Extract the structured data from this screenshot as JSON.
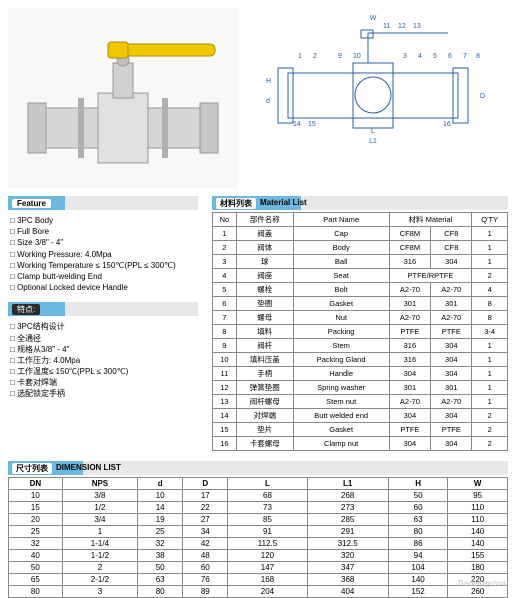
{
  "feature_header": "Feature",
  "features_en": [
    "3PC Body",
    "Full Bore",
    "Size 3/8\" - 4\"",
    "Working Pressure: 4.0Mpa",
    "Working Temperature ≤ 150℃(PPL ≤ 300℃)",
    "Clamp butt-welding End",
    "Optional Locked device Handle"
  ],
  "feature_header_cn": "特点:",
  "features_cn": [
    "3PC结构设计",
    "全通径",
    "规格从3/8\" - 4\"",
    "工作压力: 4.0Mpa",
    "工作温度≤ 150℃(PPL ≤ 300℃)",
    "卡套对焊端",
    "选配锁定手柄"
  ],
  "material_header_cn": "材料列表",
  "material_header_en": "Material List",
  "material_cols": [
    "No",
    "部件名称",
    "Part Name",
    "材料 Material",
    "",
    "Q'TY"
  ],
  "material_rows": [
    [
      "1",
      "阀盖",
      "Cap",
      "CF8M",
      "CF8",
      "1"
    ],
    [
      "2",
      "阀体",
      "Body",
      "CF8M",
      "CF8",
      "1"
    ],
    [
      "3",
      "球",
      "Ball",
      "316",
      "304",
      "1"
    ],
    [
      "4",
      "阀座",
      "Seat",
      "PTFE/RPTFE",
      "",
      "2"
    ],
    [
      "5",
      "螺栓",
      "Bolt",
      "A2-70",
      "A2-70",
      "4"
    ],
    [
      "6",
      "垫圈",
      "Gasket",
      "301",
      "301",
      "8"
    ],
    [
      "7",
      "螺母",
      "Nut",
      "A2-70",
      "A2-70",
      "8"
    ],
    [
      "8",
      "填料",
      "Packing",
      "PTFE",
      "PTFE",
      "3-4"
    ],
    [
      "9",
      "阀杆",
      "Stem",
      "316",
      "304",
      "1"
    ],
    [
      "10",
      "填料压盖",
      "Packing Gland",
      "316",
      "304",
      "1"
    ],
    [
      "11",
      "手柄",
      "Handle",
      "304",
      "304",
      "1"
    ],
    [
      "12",
      "弹簧垫圈",
      "Spring washer",
      "301",
      "301",
      "1"
    ],
    [
      "13",
      "阀杆螺母",
      "Stem nut",
      "A2-70",
      "A2-70",
      "1"
    ],
    [
      "14",
      "对焊端",
      "Butt welded end",
      "304",
      "304",
      "2"
    ],
    [
      "15",
      "垫片",
      "Gasket",
      "PTFE",
      "PTFE",
      "2"
    ],
    [
      "16",
      "卡套螺母",
      "Clamp nut",
      "304",
      "304",
      "2"
    ]
  ],
  "dimension_header_cn": "尺寸列表",
  "dimension_header_en": "DIMENSION LIST",
  "dimension_cols": [
    "DN",
    "NPS",
    "d",
    "D",
    "L",
    "L1",
    "H",
    "W"
  ],
  "dimension_rows": [
    [
      "10",
      "3/8",
      "10",
      "17",
      "68",
      "268",
      "50",
      "95"
    ],
    [
      "15",
      "1/2",
      "14",
      "22",
      "73",
      "273",
      "60",
      "110"
    ],
    [
      "20",
      "3/4",
      "19",
      "27",
      "85",
      "285",
      "63",
      "110"
    ],
    [
      "25",
      "1",
      "25",
      "34",
      "91",
      "291",
      "80",
      "140"
    ],
    [
      "32",
      "1-1/4",
      "32",
      "42",
      "112.5",
      "312.5",
      "86",
      "140"
    ],
    [
      "40",
      "1-1/2",
      "38",
      "48",
      "120",
      "320",
      "94",
      "155"
    ],
    [
      "50",
      "2",
      "50",
      "60",
      "147",
      "347",
      "104",
      "180"
    ],
    [
      "65",
      "2-1/2",
      "63",
      "76",
      "168",
      "368",
      "140",
      "220"
    ],
    [
      "80",
      "3",
      "80",
      "89",
      "204",
      "404",
      "152",
      "260"
    ]
  ],
  "watermark": "TradeKey.com",
  "colors": {
    "band_blue": "#6db8e0",
    "band_grey": "#e8e8e8",
    "border": "#888888",
    "handle_yellow": "#f0c800"
  },
  "diagram_labels": [
    "W",
    "H",
    "d",
    "D",
    "L",
    "L1"
  ],
  "diagram_numbers": [
    "1",
    "2",
    "3",
    "4",
    "5",
    "6",
    "7",
    "8",
    "9",
    "10",
    "11",
    "12",
    "13",
    "14",
    "15",
    "16"
  ]
}
